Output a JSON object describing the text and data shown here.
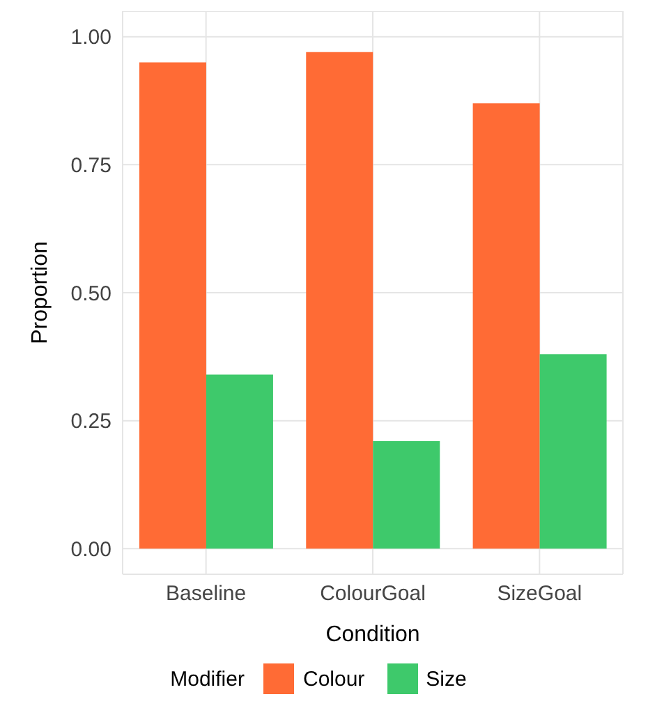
{
  "chart_data": {
    "type": "bar",
    "xlabel": "Condition",
    "ylabel": "Proportion",
    "legend_title": "Modifier",
    "categories": [
      "Baseline",
      "ColourGoal",
      "SizeGoal"
    ],
    "series": [
      {
        "name": "Colour",
        "color": "#ff6b35",
        "values": [
          0.95,
          0.97,
          0.87
        ]
      },
      {
        "name": "Size",
        "color": "#3ec96b",
        "values": [
          0.34,
          0.21,
          0.38
        ]
      }
    ],
    "ylim": [
      -0.05,
      1.05
    ],
    "yticks": [
      {
        "value": 0,
        "label": "0.00"
      },
      {
        "value": 0.25,
        "label": "0.25"
      },
      {
        "value": 0.5,
        "label": "0.50"
      },
      {
        "value": 0.75,
        "label": "0.75"
      },
      {
        "value": 1,
        "label": "1.00"
      }
    ],
    "grid": true,
    "legend": "bottom"
  }
}
